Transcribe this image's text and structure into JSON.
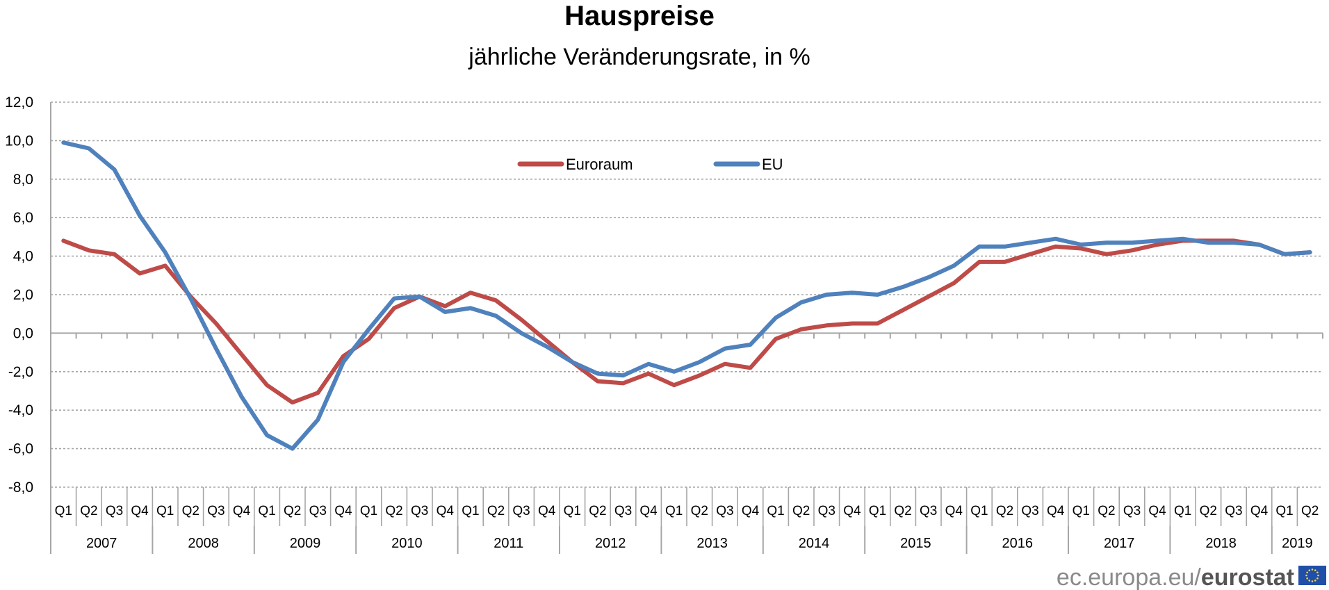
{
  "chart_data": {
    "type": "line",
    "title": "Hauspreise",
    "subtitle": "jährliche Veränderungsrate, in %",
    "ylim": [
      -8,
      12
    ],
    "yticks": [
      "12,0",
      "10,0",
      "8,0",
      "6,0",
      "4,0",
      "2,0",
      "0,0",
      "-2,0",
      "-4,0",
      "-6,0",
      "-8,0"
    ],
    "grid": true,
    "legend_position": "top-center",
    "quarter_labels": [
      "Q1",
      "Q2",
      "Q3",
      "Q4",
      "Q1",
      "Q2",
      "Q3",
      "Q4",
      "Q1",
      "Q2",
      "Q3",
      "Q4",
      "Q1",
      "Q2",
      "Q3",
      "Q4",
      "Q1",
      "Q2",
      "Q3",
      "Q4",
      "Q1",
      "Q2",
      "Q3",
      "Q4",
      "Q1",
      "Q2",
      "Q3",
      "Q4",
      "Q1",
      "Q2",
      "Q3",
      "Q4",
      "Q1",
      "Q2",
      "Q3",
      "Q4",
      "Q1",
      "Q2",
      "Q3",
      "Q4",
      "Q1",
      "Q2",
      "Q3",
      "Q4",
      "Q1",
      "Q2",
      "Q3",
      "Q4",
      "Q1",
      "Q2"
    ],
    "years": [
      "2007",
      "2008",
      "2009",
      "2010",
      "2011",
      "2012",
      "2013",
      "2014",
      "2015",
      "2016",
      "2017",
      "2018",
      "2019"
    ],
    "series": [
      {
        "name": "Euroraum",
        "color": "#BE4B48",
        "values": [
          4.8,
          4.3,
          4.1,
          3.1,
          3.5,
          1.9,
          0.5,
          -1.1,
          -2.7,
          -3.6,
          -3.1,
          -1.2,
          -0.3,
          1.3,
          1.9,
          1.4,
          2.1,
          1.7,
          0.7,
          -0.4,
          -1.5,
          -2.5,
          -2.6,
          -2.1,
          -2.7,
          -2.2,
          -1.6,
          -1.8,
          -0.3,
          0.2,
          0.4,
          0.5,
          0.5,
          1.2,
          1.9,
          2.6,
          3.7,
          3.7,
          4.1,
          4.5,
          4.4,
          4.1,
          4.3,
          4.6,
          4.8,
          4.8,
          4.8,
          4.6,
          4.1,
          4.2
        ]
      },
      {
        "name": "EU",
        "color": "#4F81BD",
        "values": [
          9.9,
          9.6,
          8.5,
          6.1,
          4.2,
          1.8,
          -0.8,
          -3.3,
          -5.3,
          -6.0,
          -4.5,
          -1.5,
          0.2,
          1.8,
          1.9,
          1.1,
          1.3,
          0.9,
          0.0,
          -0.7,
          -1.5,
          -2.1,
          -2.2,
          -1.6,
          -2.0,
          -1.5,
          -0.8,
          -0.6,
          0.8,
          1.6,
          2.0,
          2.1,
          2.0,
          2.4,
          2.9,
          3.5,
          4.5,
          4.5,
          4.7,
          4.9,
          4.6,
          4.7,
          4.7,
          4.8,
          4.9,
          4.7,
          4.7,
          4.6,
          4.1,
          4.2
        ]
      }
    ]
  },
  "footer": {
    "prefix": "ec.europa.eu/",
    "brand": "eurostat"
  },
  "colors": {
    "grid": "#a6a6a6",
    "eu_flag": "#1f4fa8",
    "eu_star": "#f6d44b"
  }
}
